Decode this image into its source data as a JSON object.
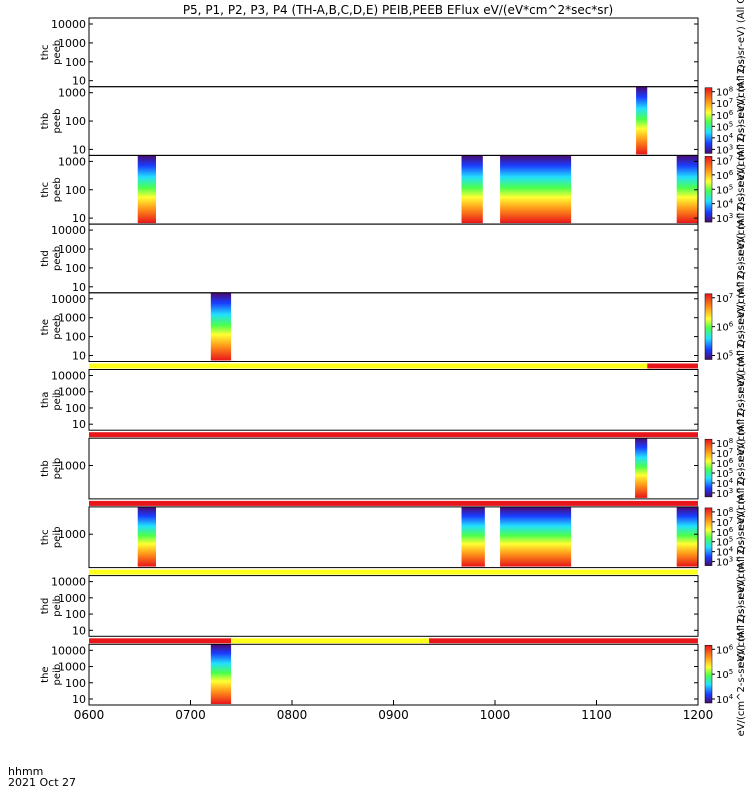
{
  "chart_data": {
    "type": "heatmap",
    "title": "P5, P1, P2, P3, P4 (TH-A,B,C,D,E) PEIB,PEEB EFlux eV/(eV*cm^2*sec*sr)",
    "xlabel_line1": "hhmm",
    "xlabel_line2": "2021 Oct 27",
    "xticks": [
      "0600",
      "0700",
      "0800",
      "0900",
      "1000",
      "1100",
      "1200"
    ],
    "x_range_hours": [
      6,
      12
    ],
    "colors": {
      "red": "#e8151a",
      "yellow": "#ffff1a",
      "black": "#000000"
    },
    "panels": [
      {
        "label1": "thc",
        "label2": "peeb",
        "yticks": [
          "10000",
          "1000",
          "100",
          "10"
        ],
        "strip": "none",
        "blocks": [],
        "colorbar": null,
        "side_label": "eV/(cm^2-s-sr-eV) (All Qs)"
      },
      {
        "label1": "thb",
        "label2": "peeb",
        "yticks": [
          "1000",
          "100",
          "10"
        ],
        "strip": "none",
        "blocks": [
          {
            "start": 11.39,
            "end": 11.5
          }
        ],
        "colorbar": {
          "ticks": [
            "10^8",
            "10^7",
            "10^6",
            "10^5",
            "10^4",
            "10^3"
          ]
        },
        "side_label": "eV/(cm^2-s-sr-eV) (All Qs)"
      },
      {
        "label1": "thc",
        "label2": "peeb",
        "yticks": [
          "1000",
          "100",
          "10"
        ],
        "strip": "none",
        "blocks": [
          {
            "start": 6.48,
            "end": 6.66
          },
          {
            "start": 9.67,
            "end": 9.88
          },
          {
            "start": 10.05,
            "end": 10.75
          },
          {
            "start": 11.79,
            "end": 12.0
          }
        ],
        "colorbar": {
          "ticks": [
            "10^7",
            "10^6",
            "10^5",
            "10^4",
            "10^3"
          ]
        },
        "side_label": "eV/(cm^2-s-sr-eV) (All Qs)"
      },
      {
        "label1": "thd",
        "label2": "peeb",
        "yticks": [
          "10000",
          "1000",
          "100",
          "10"
        ],
        "strip": "none",
        "blocks": [],
        "colorbar": null,
        "side_label": "eV/(cm^2-s-sr-eV) (All Qs)"
      },
      {
        "label1": "the",
        "label2": "peeb",
        "yticks": [
          "10000",
          "1000",
          "100",
          "10"
        ],
        "strip": "none",
        "blocks": [
          {
            "start": 7.2,
            "end": 7.4
          }
        ],
        "colorbar": {
          "ticks": [
            "10^7",
            "10^6",
            "10^5"
          ]
        },
        "side_label": "eV/(cm^2-s-sr-eV) (All Qs)"
      },
      {
        "label1": "tha",
        "label2": "peib",
        "yticks": [
          "10000",
          "1000",
          "100",
          "10"
        ],
        "strip": [
          {
            "start": 6.0,
            "end": 11.5,
            "color": "yellow"
          },
          {
            "start": 11.5,
            "end": 12.0,
            "color": "red"
          }
        ],
        "blocks": [],
        "colorbar": null,
        "side_label": "eV/(cm^2-s-sr-eV) (All Qs)"
      },
      {
        "label1": "thb",
        "label2": "peib",
        "yticks": [
          "1000"
        ],
        "strip": [
          {
            "start": 6.0,
            "end": 12.0,
            "color": "red"
          }
        ],
        "blocks": [
          {
            "start": 11.38,
            "end": 11.5
          }
        ],
        "colorbar": {
          "ticks": [
            "10^8",
            "10^7",
            "10^6",
            "10^5",
            "10^4",
            "10^3"
          ]
        },
        "side_label": "eV/(cm^2-s-sr-eV) (All Qs)"
      },
      {
        "label1": "thc",
        "label2": "peib",
        "yticks": [
          "1000"
        ],
        "strip": [
          {
            "start": 6.0,
            "end": 12.0,
            "color": "red"
          }
        ],
        "blocks": [
          {
            "start": 6.48,
            "end": 6.66
          },
          {
            "start": 9.67,
            "end": 9.9
          },
          {
            "start": 10.05,
            "end": 10.75
          },
          {
            "start": 11.79,
            "end": 12.0
          }
        ],
        "colorbar": {
          "ticks": [
            "10^8",
            "10^7",
            "10^6",
            "10^5",
            "10^4",
            "10^3"
          ]
        },
        "side_label": "eV/(cm^2-s-sr-eV) (All Qs)"
      },
      {
        "label1": "thd",
        "label2": "peib",
        "yticks": [
          "10000",
          "1000",
          "100",
          "10"
        ],
        "strip": [
          {
            "start": 6.0,
            "end": 12.0,
            "color": "yellow"
          }
        ],
        "blocks": [],
        "colorbar": null,
        "side_label": "eV/(cm^2-s-sr-eV) (All Qs)"
      },
      {
        "label1": "the",
        "label2": "peib",
        "yticks": [
          "10000",
          "1000",
          "100",
          "10"
        ],
        "strip": [
          {
            "start": 6.0,
            "end": 7.4,
            "color": "red"
          },
          {
            "start": 7.4,
            "end": 9.35,
            "color": "yellow"
          },
          {
            "start": 9.35,
            "end": 12.0,
            "color": "red"
          }
        ],
        "blocks": [
          {
            "start": 7.2,
            "end": 7.4
          }
        ],
        "colorbar": {
          "ticks": [
            "10^6",
            "10^5",
            "10^4"
          ]
        },
        "side_label": "eV/(cm^2-s-sr-eV) (All Qs)"
      }
    ]
  }
}
